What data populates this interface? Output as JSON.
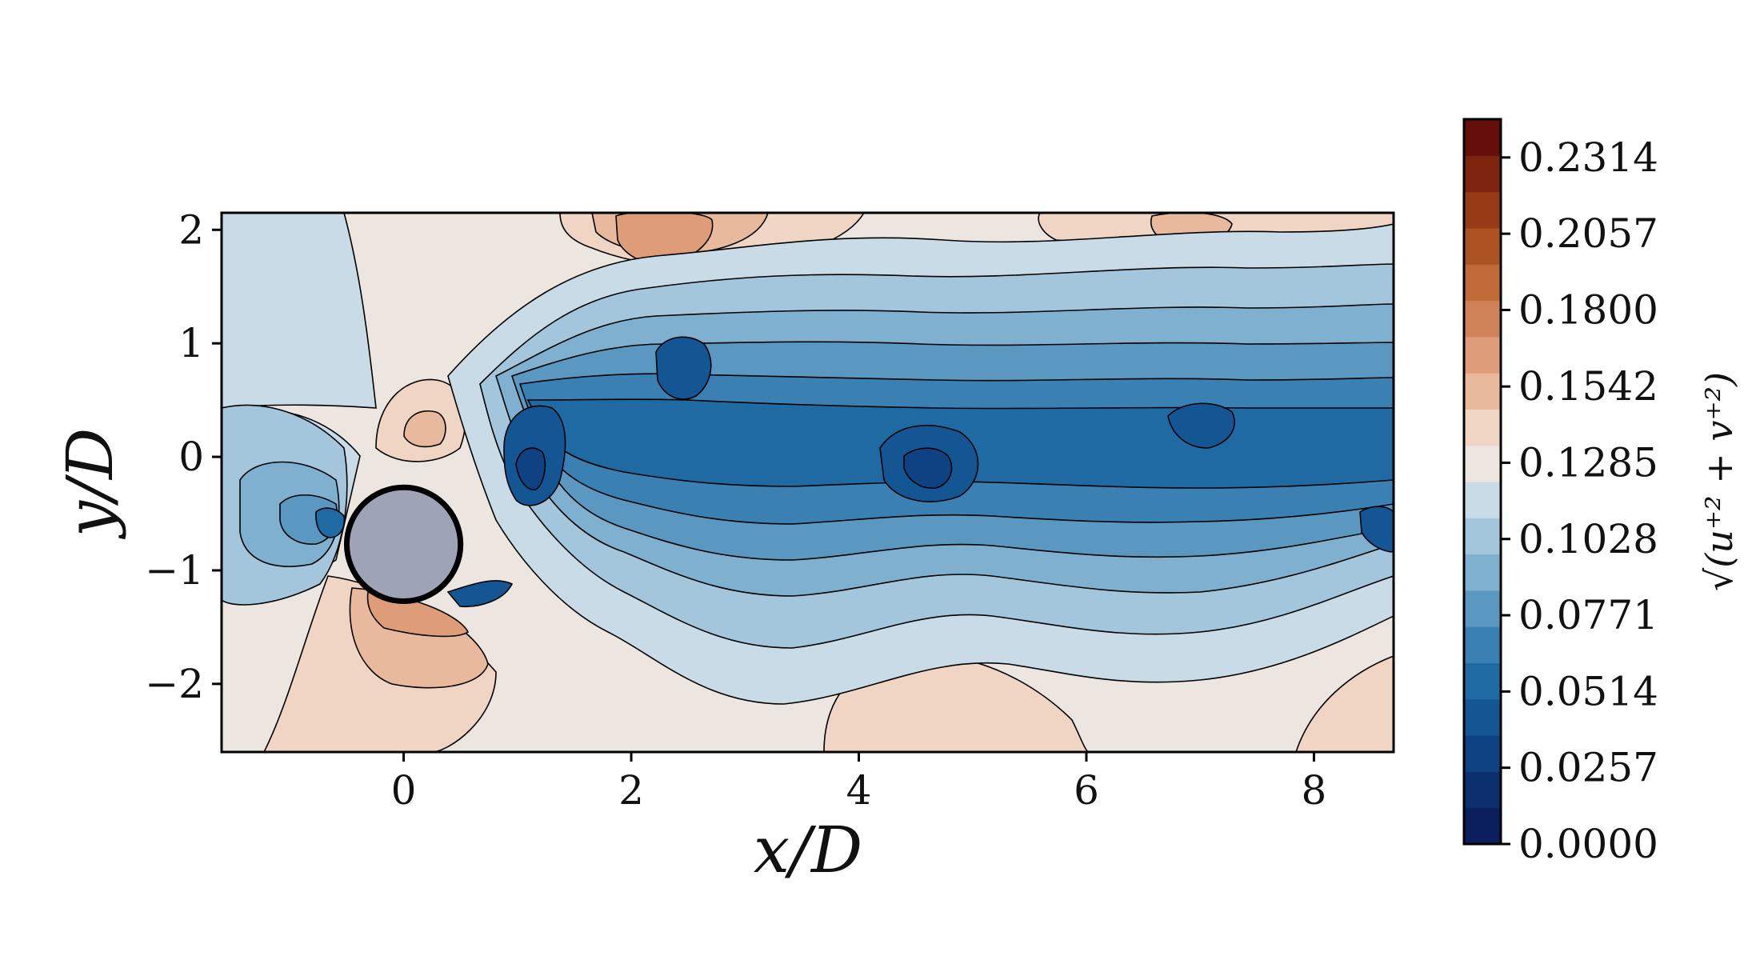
{
  "chart_data": {
    "type": "heatmap",
    "title": "",
    "xlabel": "x/D",
    "ylabel": "y/D",
    "xlim": [
      -1.6,
      8.7
    ],
    "ylim": [
      -2.6,
      2.15
    ],
    "x_ticks": [
      0,
      2,
      4,
      6,
      8
    ],
    "x_tick_labels": [
      "0",
      "2",
      "4",
      "6",
      "8"
    ],
    "y_ticks": [
      -2,
      -1,
      0,
      1,
      2
    ],
    "y_tick_labels": [
      "−2",
      "−1",
      "0",
      "1",
      "2"
    ],
    "cylinder": {
      "center": [
        0,
        -0.77
      ],
      "diameter": 1.0,
      "color": "#9ea3b6"
    },
    "colorbar": {
      "label": "√(u⁺² + v⁺²)",
      "range": [
        0,
        0.2443
      ],
      "levels": 19,
      "tick_values": [
        0.0,
        0.0257,
        0.0514,
        0.0771,
        0.1028,
        0.1285,
        0.1542,
        0.18,
        0.2057,
        0.2314
      ],
      "tick_labels": [
        "0.0000",
        "0.0257",
        "0.0514",
        "0.0771",
        "0.1028",
        "0.1285",
        "0.1542",
        "0.1800",
        "0.2057",
        "0.2314"
      ],
      "colors": [
        "#0a1f5c",
        "#0c2f6e",
        "#0f4283",
        "#145594",
        "#1f6aa2",
        "#3a80b2",
        "#5b98c1",
        "#7fb0cf",
        "#a3c6dc",
        "#c8dbe7",
        "#ece5e0",
        "#f0d5c5",
        "#e9b99e",
        "#de9d78",
        "#d08258",
        "#c2693a",
        "#ad5222",
        "#963b15",
        "#7e240e",
        "#640f0a"
      ]
    },
    "colormap": "blue-white-red (diverging)",
    "wake_minima_approx": [
      [
        1.2,
        -0.2
      ],
      [
        2.4,
        0.9
      ],
      [
        4.6,
        -0.1
      ],
      [
        7.0,
        0.3
      ]
    ],
    "high_regions_approx": [
      [
        2.5,
        2.0
      ],
      [
        0.2,
        0.3
      ],
      [
        0.1,
        -1.6
      ],
      [
        4.6,
        -2.4
      ]
    ]
  }
}
